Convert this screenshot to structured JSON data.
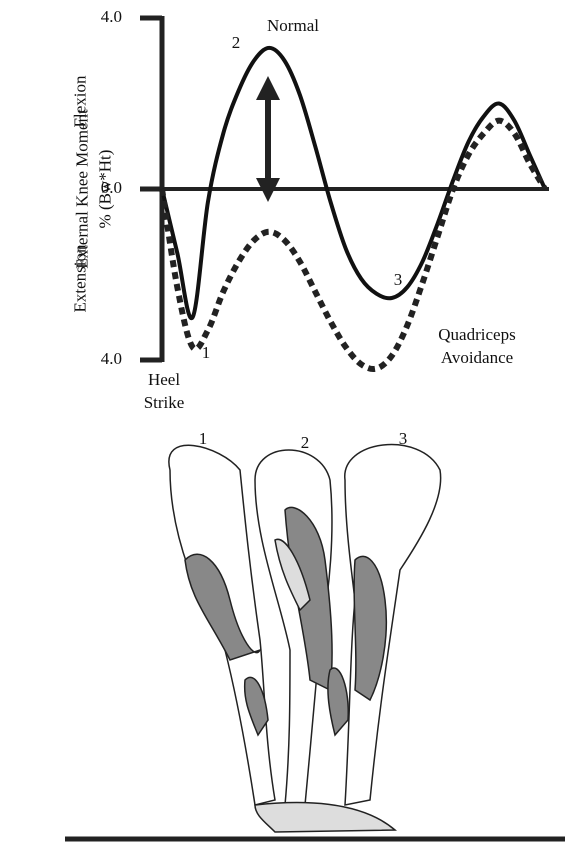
{
  "chart_data": {
    "type": "line",
    "ylabel": "External Knee Moment % (Bw*Ht)",
    "annotations": [
      "2",
      "1",
      "3",
      "Heel Strike",
      "Flexion",
      "Extension"
    ],
    "x": [
      0,
      4,
      8,
      12,
      16,
      20,
      24,
      28,
      32,
      36,
      40,
      44,
      48,
      52,
      56,
      60,
      64,
      68,
      72,
      76,
      80,
      84,
      88,
      92,
      96,
      100
    ],
    "xlim": [
      0,
      100
    ],
    "ylim": [
      -4,
      4
    ],
    "yticks": [
      {
        "value": 4,
        "label": "4.0"
      },
      {
        "value": 0,
        "label": "0.0"
      },
      {
        "value": -4,
        "label": "4.0"
      }
    ],
    "series": [
      {
        "name": "Normal",
        "color": "#111111",
        "dashed": false,
        "values": [
          0,
          -1.5,
          -3.0,
          -0.3,
          1.3,
          2.3,
          3.0,
          3.3,
          3.0,
          2.2,
          1.0,
          -0.3,
          -1.4,
          -2.1,
          -2.45,
          -2.55,
          -2.3,
          -1.7,
          -0.8,
          0.2,
          1.1,
          1.7,
          2.0,
          1.6,
          0.8,
          0
        ]
      },
      {
        "name": "Quadriceps Avoidance",
        "color": "#222222",
        "dashed": true,
        "values": [
          0,
          -2.3,
          -3.7,
          -3.3,
          -2.4,
          -1.7,
          -1.2,
          -1.0,
          -1.2,
          -1.7,
          -2.4,
          -3.1,
          -3.7,
          -4.1,
          -4.2,
          -3.9,
          -3.2,
          -2.2,
          -1.1,
          0,
          0.8,
          1.3,
          1.6,
          1.3,
          0.6,
          0
        ]
      }
    ]
  },
  "illustration": {
    "labels": [
      "1",
      "2",
      "3"
    ]
  }
}
